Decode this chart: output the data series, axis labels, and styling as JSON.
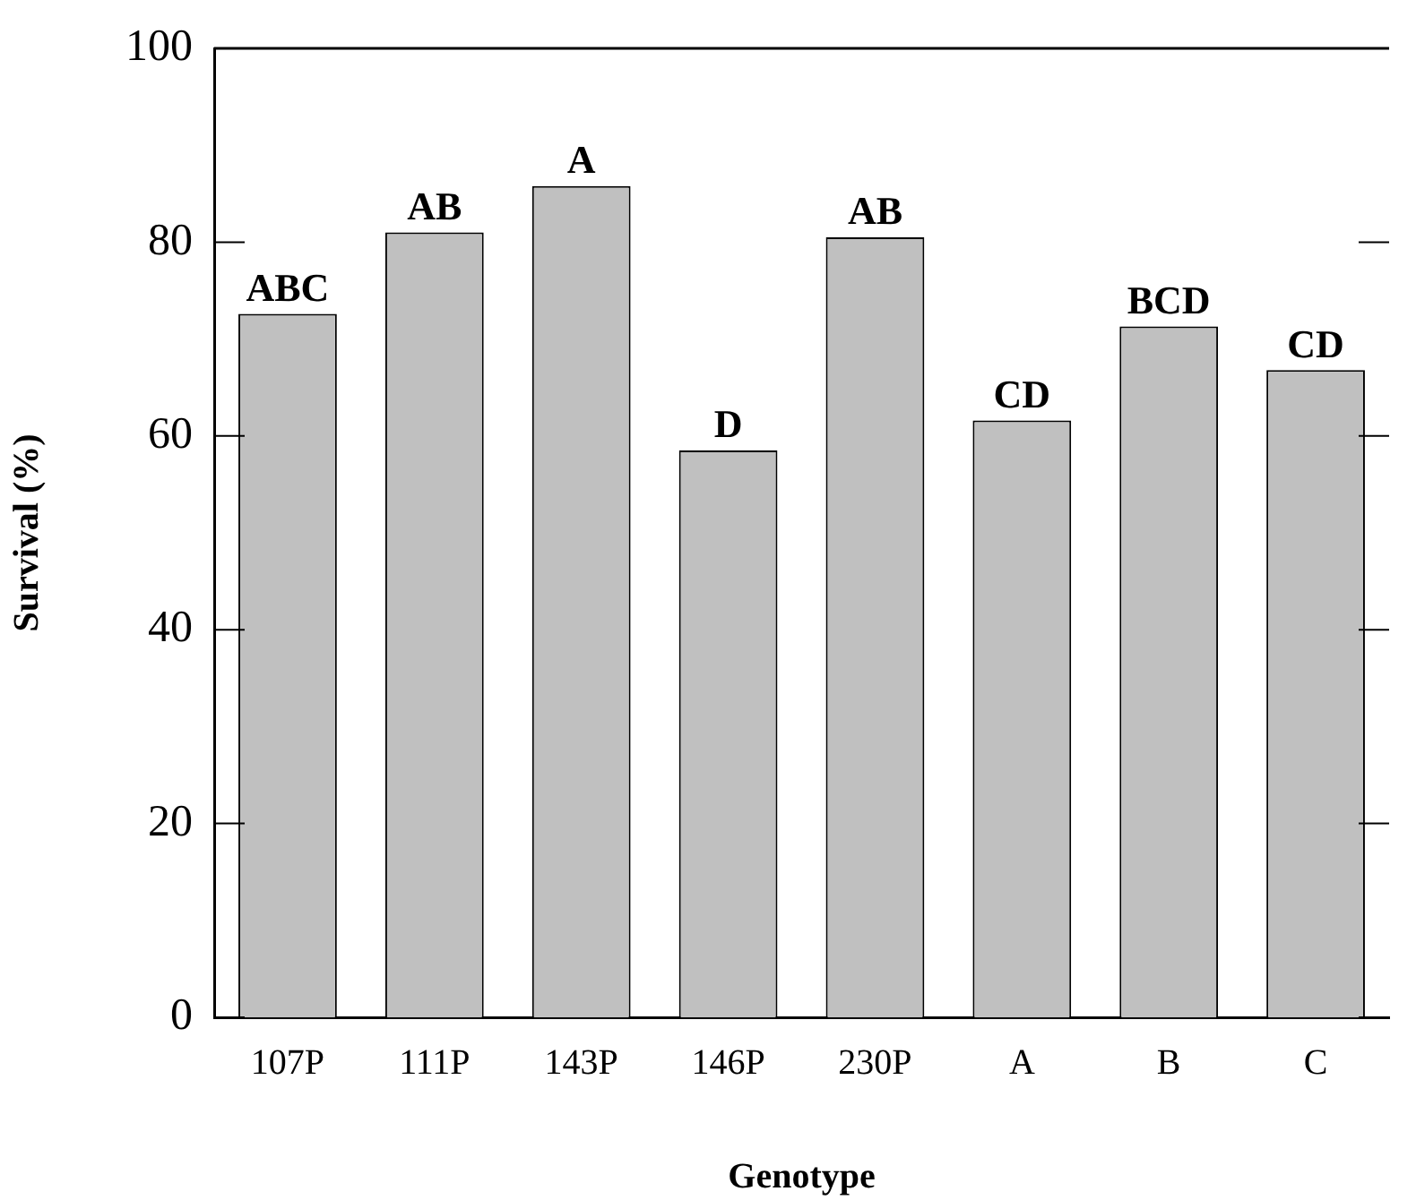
{
  "chart_data": {
    "type": "bar",
    "xlabel": "Genotype",
    "ylabel": "Survival (%)",
    "categories": [
      "107P",
      "111P",
      "143P",
      "146P",
      "230P",
      "A",
      "B",
      "C"
    ],
    "values": [
      72.6,
      81.0,
      85.8,
      58.5,
      80.5,
      61.6,
      71.3,
      66.8
    ],
    "color": "#c0c0c0",
    "ylim": [
      0,
      100
    ],
    "yticks": [
      0,
      20,
      40,
      60,
      80,
      100
    ],
    "grid": false,
    "legend": false,
    "annotations": [
      {
        "text": "ABC",
        "x": "107P",
        "y": 72.6
      },
      {
        "text": "AB",
        "x": "111P",
        "y": 81.0
      },
      {
        "text": "A",
        "x": "143P",
        "y": 85.8
      },
      {
        "text": "D",
        "x": "146P",
        "y": 58.5
      },
      {
        "text": "AB",
        "x": "230P",
        "y": 80.5
      },
      {
        "text": "CD",
        "x": "A",
        "y": 61.6
      },
      {
        "text": "BCD",
        "x": "B",
        "y": 71.3
      },
      {
        "text": "CD",
        "x": "C",
        "y": 66.8
      }
    ]
  }
}
